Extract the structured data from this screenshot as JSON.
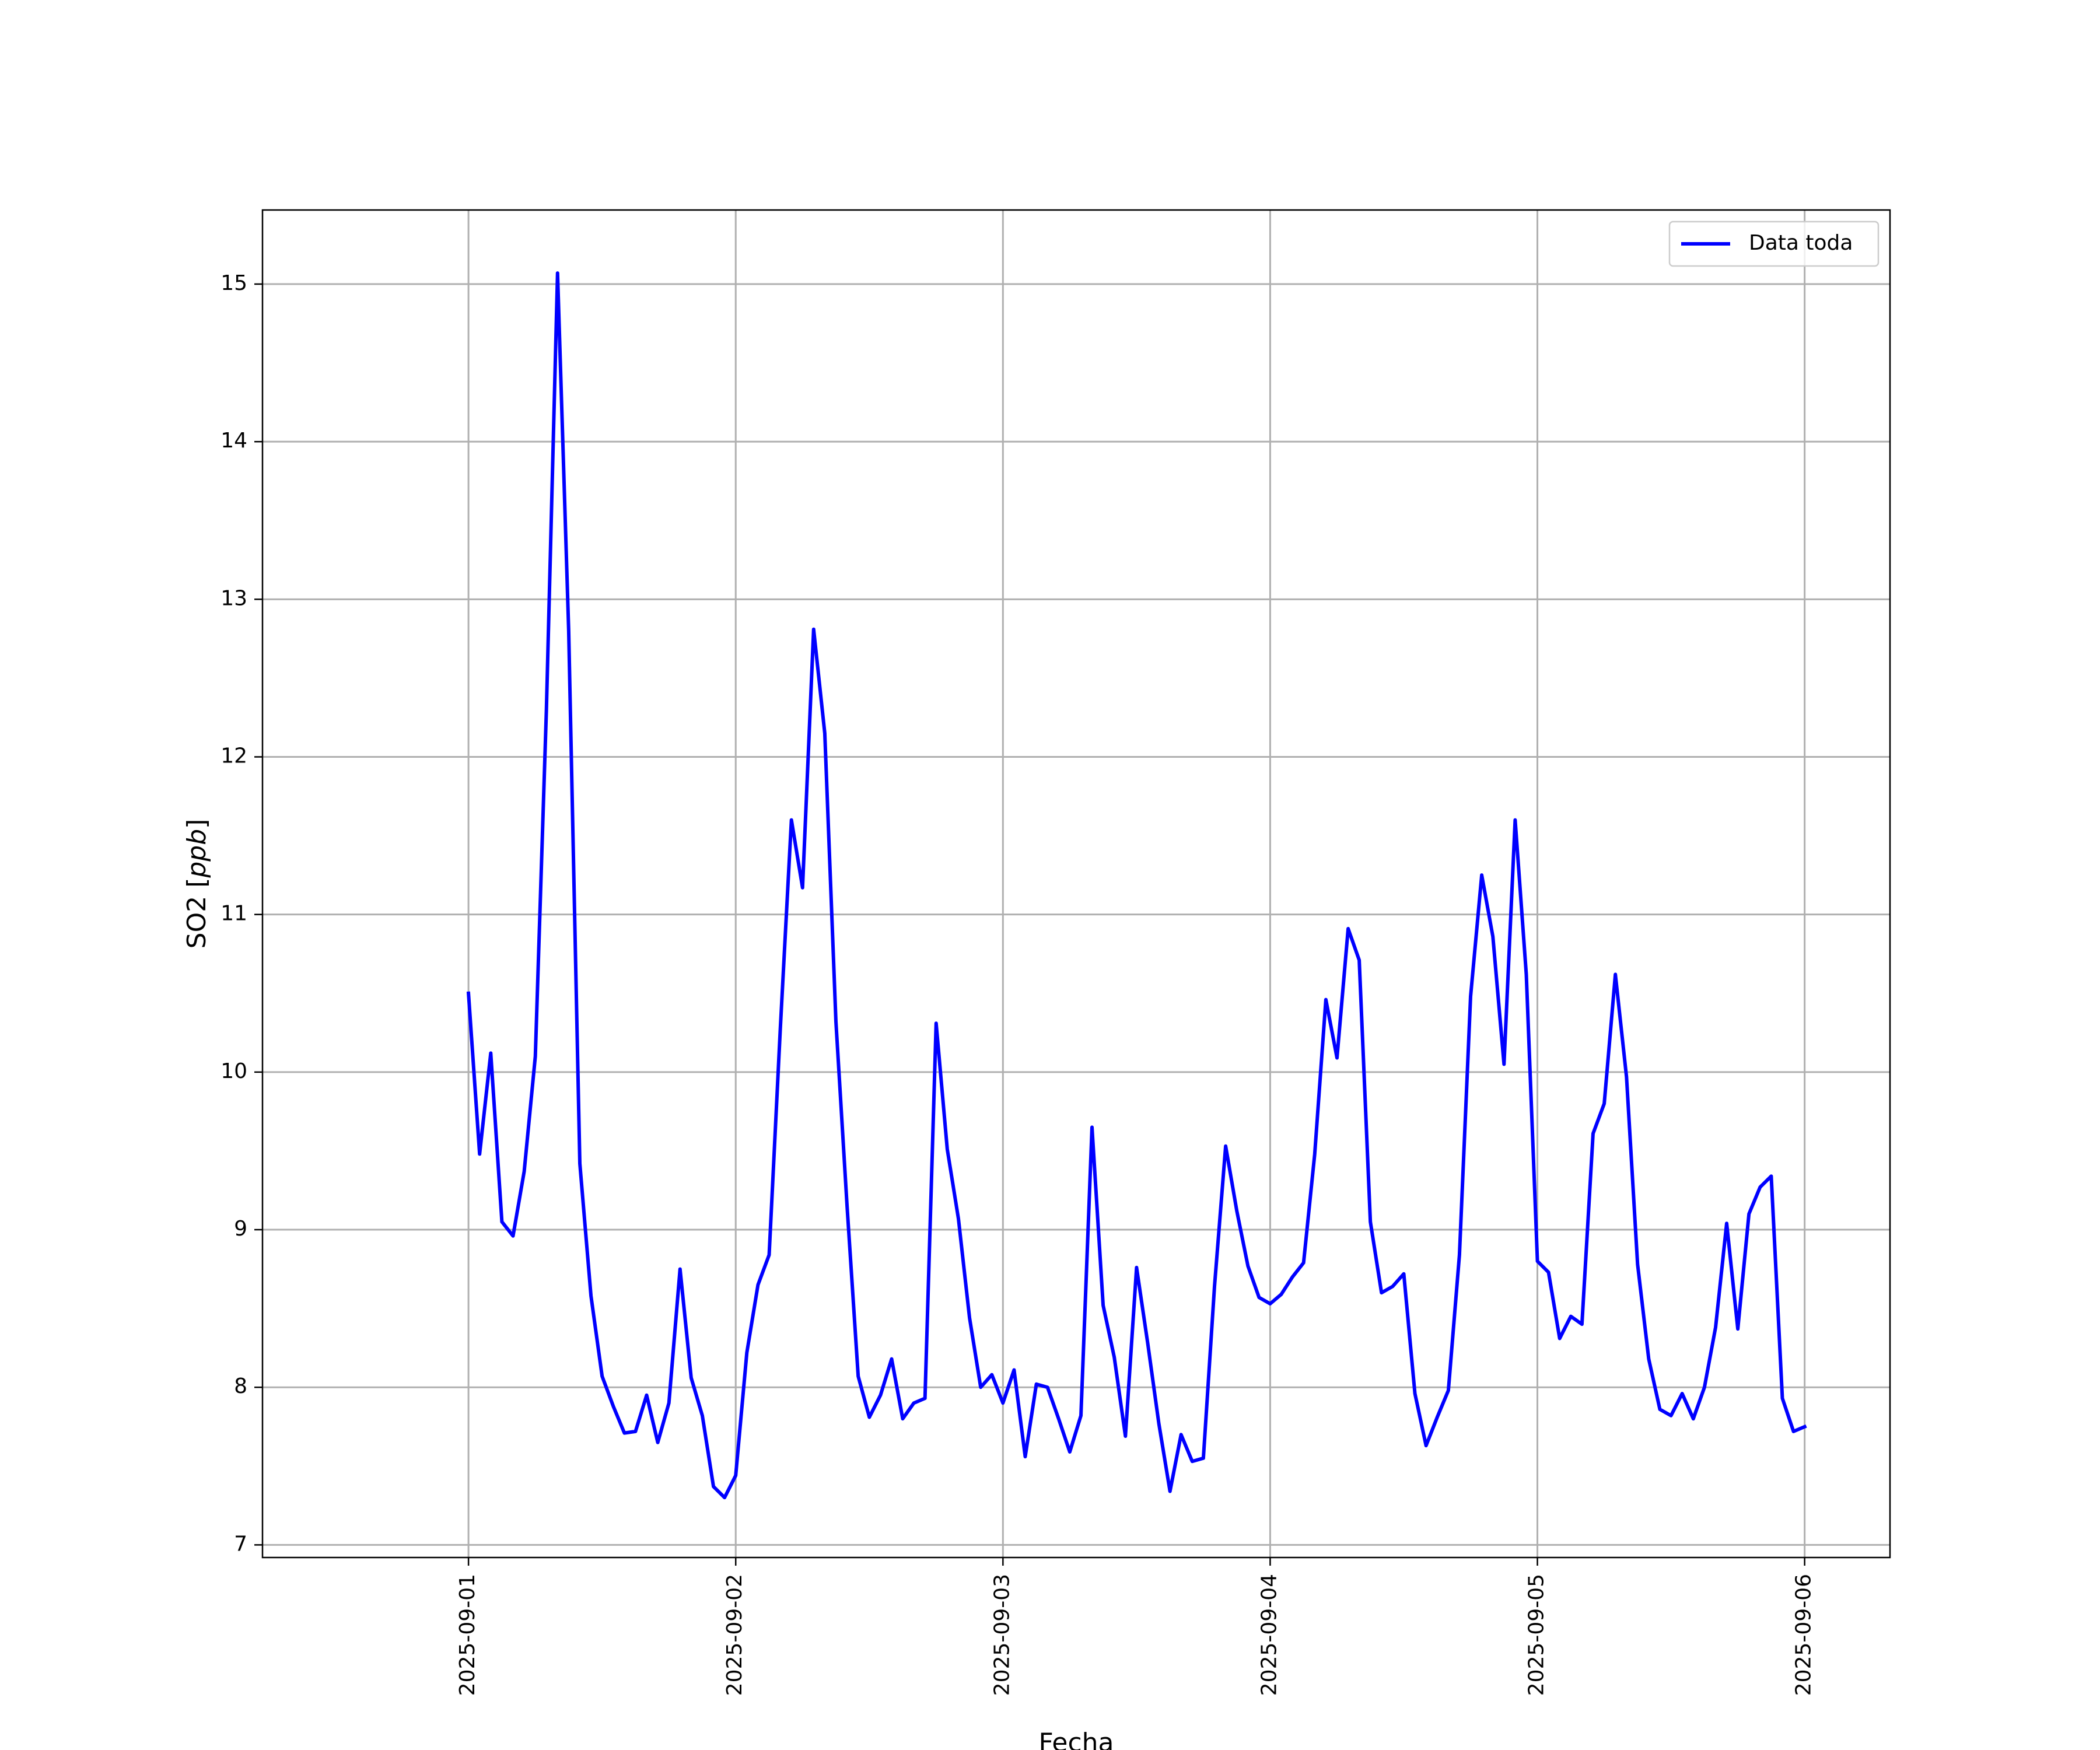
{
  "chart_data": {
    "type": "line",
    "xlabel": "Fecha",
    "ylabel_main": "SO2 [",
    "ylabel_unit": "ppb",
    "ylabel_close": "]",
    "x_tick_labels": [
      "2025-09-01",
      "2025-09-02",
      "2025-09-03",
      "2025-09-04",
      "2025-09-05",
      "2025-09-06"
    ],
    "y_tick_labels": [
      "7",
      "8",
      "9",
      "10",
      "11",
      "12",
      "13",
      "14",
      "15"
    ],
    "xlim": [
      "2025-08-31T05:30",
      "2025-09-06T07:40"
    ],
    "ylim": [
      6.92,
      15.47
    ],
    "grid": true,
    "legend_position": "upper right",
    "line_color": "#0000ff",
    "series": [
      {
        "name": "Data toda",
        "x": [
          "2025-09-01T00:00",
          "2025-09-01T01:00",
          "2025-09-01T02:00",
          "2025-09-01T03:00",
          "2025-09-01T04:00",
          "2025-09-01T05:00",
          "2025-09-01T06:00",
          "2025-09-01T07:00",
          "2025-09-01T08:00",
          "2025-09-01T09:00",
          "2025-09-01T10:00",
          "2025-09-01T11:00",
          "2025-09-01T12:00",
          "2025-09-01T13:00",
          "2025-09-01T14:00",
          "2025-09-01T15:00",
          "2025-09-01T16:00",
          "2025-09-01T17:00",
          "2025-09-01T18:00",
          "2025-09-01T19:00",
          "2025-09-01T20:00",
          "2025-09-01T21:00",
          "2025-09-01T22:00",
          "2025-09-01T23:00",
          "2025-09-02T00:00",
          "2025-09-02T01:00",
          "2025-09-02T02:00",
          "2025-09-02T03:00",
          "2025-09-02T04:00",
          "2025-09-02T05:00",
          "2025-09-02T06:00",
          "2025-09-02T07:00",
          "2025-09-02T08:00",
          "2025-09-02T09:00",
          "2025-09-02T10:00",
          "2025-09-02T11:00",
          "2025-09-02T12:00",
          "2025-09-02T13:00",
          "2025-09-02T14:00",
          "2025-09-02T15:00",
          "2025-09-02T16:00",
          "2025-09-02T17:00",
          "2025-09-02T18:00",
          "2025-09-02T19:00",
          "2025-09-02T20:00",
          "2025-09-02T21:00",
          "2025-09-02T22:00",
          "2025-09-02T23:00",
          "2025-09-03T00:00",
          "2025-09-03T01:00",
          "2025-09-03T02:00",
          "2025-09-03T03:00",
          "2025-09-03T04:00",
          "2025-09-03T05:00",
          "2025-09-03T06:00",
          "2025-09-03T07:00",
          "2025-09-03T08:00",
          "2025-09-03T09:00",
          "2025-09-03T10:00",
          "2025-09-03T11:00",
          "2025-09-03T12:00",
          "2025-09-03T13:00",
          "2025-09-03T14:00",
          "2025-09-03T15:00",
          "2025-09-03T16:00",
          "2025-09-03T17:00",
          "2025-09-03T18:00",
          "2025-09-03T19:00",
          "2025-09-03T20:00",
          "2025-09-03T21:00",
          "2025-09-03T22:00",
          "2025-09-03T23:00",
          "2025-09-04T00:00",
          "2025-09-04T01:00",
          "2025-09-04T02:00",
          "2025-09-04T03:00",
          "2025-09-04T04:00",
          "2025-09-04T05:00",
          "2025-09-04T06:00",
          "2025-09-04T07:00",
          "2025-09-04T08:00",
          "2025-09-04T09:00",
          "2025-09-04T10:00",
          "2025-09-04T11:00",
          "2025-09-04T12:00",
          "2025-09-04T13:00",
          "2025-09-04T14:00",
          "2025-09-04T15:00",
          "2025-09-04T16:00",
          "2025-09-04T17:00",
          "2025-09-04T18:00",
          "2025-09-04T19:00",
          "2025-09-04T20:00",
          "2025-09-04T21:00",
          "2025-09-04T22:00",
          "2025-09-04T23:00",
          "2025-09-05T00:00",
          "2025-09-05T01:00",
          "2025-09-05T02:00",
          "2025-09-05T03:00",
          "2025-09-05T04:00",
          "2025-09-05T05:00",
          "2025-09-05T06:00",
          "2025-09-05T07:00",
          "2025-09-05T08:00",
          "2025-09-05T09:00",
          "2025-09-05T10:00",
          "2025-09-05T11:00",
          "2025-09-05T12:00",
          "2025-09-05T13:00",
          "2025-09-05T14:00",
          "2025-09-05T15:00",
          "2025-09-05T16:00",
          "2025-09-05T17:00",
          "2025-09-05T18:00",
          "2025-09-05T19:00",
          "2025-09-05T20:00",
          "2025-09-05T21:00",
          "2025-09-05T22:00",
          "2025-09-05T23:00",
          "2025-09-06T00:00"
        ],
        "y": [
          10.5,
          9.48,
          10.12,
          9.05,
          8.96,
          9.37,
          10.1,
          12.3,
          15.07,
          12.8,
          9.42,
          8.58,
          8.07,
          7.88,
          7.71,
          7.72,
          7.95,
          7.65,
          7.9,
          8.75,
          8.06,
          7.82,
          7.37,
          7.3,
          7.44,
          8.22,
          8.65,
          8.84,
          10.27,
          11.6,
          11.17,
          12.81,
          12.15,
          10.32,
          9.15,
          8.07,
          7.81,
          7.95,
          8.18,
          7.8,
          7.9,
          7.93,
          10.31,
          9.51,
          9.07,
          8.44,
          8.0,
          8.08,
          7.9,
          8.11,
          7.56,
          8.02,
          8.0,
          7.8,
          7.59,
          7.82,
          9.65,
          8.52,
          8.19,
          7.69,
          8.76,
          8.28,
          7.77,
          7.34,
          7.7,
          7.53,
          7.55,
          8.64,
          9.53,
          9.12,
          8.77,
          8.57,
          8.53,
          8.59,
          8.7,
          8.79,
          9.48,
          10.46,
          10.09,
          10.91,
          10.71,
          9.05,
          8.6,
          8.64,
          8.72,
          7.96,
          7.63,
          7.81,
          7.98,
          8.84,
          10.48,
          11.25,
          10.86,
          10.05,
          11.6,
          10.62,
          8.8,
          8.73,
          8.31,
          8.45,
          8.4,
          9.61,
          9.8,
          10.62,
          9.97,
          8.78,
          8.18,
          7.86,
          7.82,
          7.96,
          7.8,
          8.0,
          8.38,
          9.04,
          8.37,
          9.1,
          9.27,
          9.34,
          7.93,
          7.72,
          7.75
        ]
      }
    ]
  }
}
